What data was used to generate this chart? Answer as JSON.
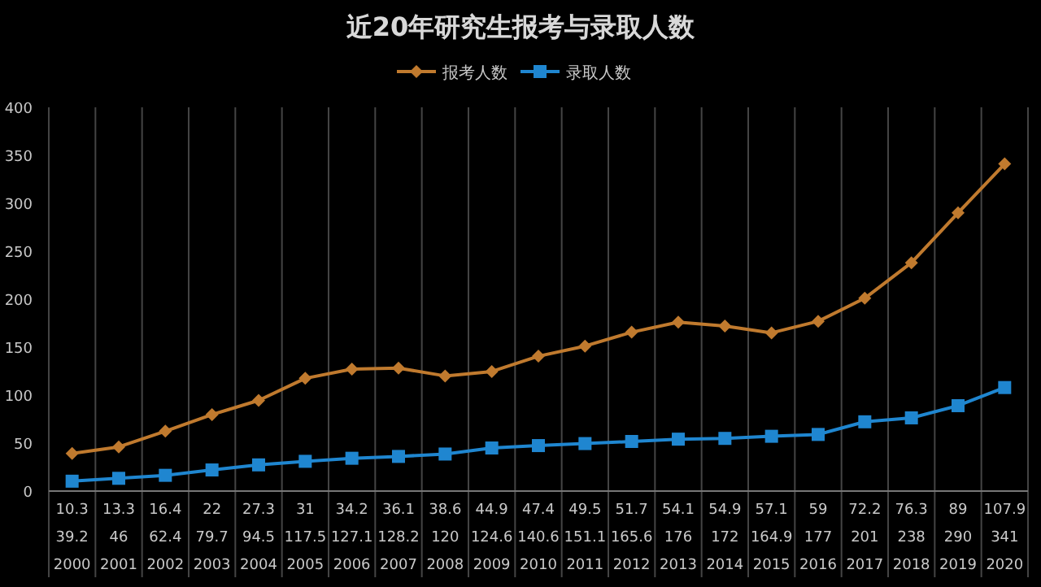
{
  "chart_data": {
    "type": "line",
    "title": "近20年研究生报考与录取人数",
    "categories": [
      "2000",
      "2001",
      "2002",
      "2003",
      "2004",
      "2005",
      "2006",
      "2007",
      "2008",
      "2009",
      "2010",
      "2011",
      "2012",
      "2013",
      "2014",
      "2015",
      "2016",
      "2017",
      "2018",
      "2019",
      "2020"
    ],
    "series": [
      {
        "name": "报考人数",
        "color": "#c07a2e",
        "marker": "diamond",
        "values": [
          39.2,
          46,
          62.4,
          79.7,
          94.5,
          117.5,
          127.1,
          128.2,
          120,
          124.6,
          140.6,
          151.1,
          165.6,
          176,
          172,
          164.9,
          177,
          201,
          238,
          290,
          341
        ]
      },
      {
        "name": "录取人数",
        "color": "#1f86d0",
        "marker": "square",
        "values": [
          10.3,
          13.3,
          16.4,
          22,
          27.3,
          31,
          34.2,
          36.1,
          38.6,
          44.9,
          47.4,
          49.5,
          51.7,
          54.1,
          54.9,
          57.1,
          59,
          72.2,
          76.3,
          89,
          107.9
        ]
      }
    ],
    "ylim": [
      0,
      400
    ],
    "yticks": [
      0,
      50,
      100,
      150,
      200,
      250,
      300,
      350,
      400
    ],
    "grid": "x",
    "legend": "top",
    "data_labels": true,
    "line_style": "solid"
  }
}
